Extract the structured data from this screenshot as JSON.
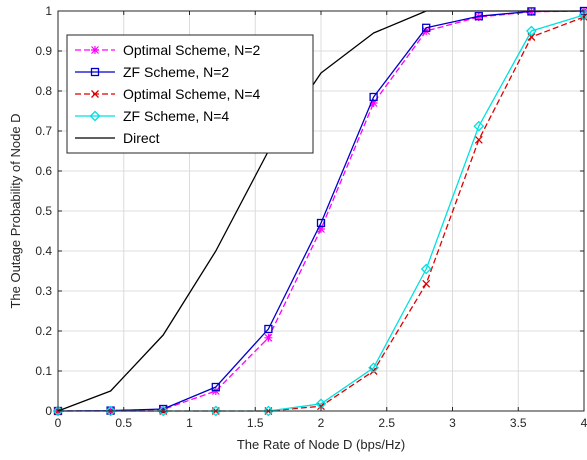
{
  "chart_data": {
    "type": "line",
    "title": "",
    "xlabel": "The Rate of Node D (bps/Hz)",
    "ylabel": "The Outage Probability of Node D",
    "xlim": [
      0,
      4
    ],
    "ylim": [
      0,
      1
    ],
    "xticks": [
      0,
      0.5,
      1,
      1.5,
      2,
      2.5,
      3,
      3.5,
      4
    ],
    "xtick_labels": [
      "0",
      "0.5",
      "1",
      "1.5",
      "2",
      "2.5",
      "3",
      "3.5",
      "4"
    ],
    "yticks": [
      0,
      0.1,
      0.2,
      0.3,
      0.4,
      0.5,
      0.6,
      0.7,
      0.8,
      0.9,
      1
    ],
    "ytick_labels": [
      "0",
      "0.1",
      "0.2",
      "0.3",
      "0.4",
      "0.5",
      "0.6",
      "0.7",
      "0.8",
      "0.9",
      "1"
    ],
    "grid": true,
    "legend_position": "upper-left",
    "series": [
      {
        "name": "Optimal Scheme, N=2",
        "color": "#ff00ff",
        "dash": "dashed",
        "marker": "asterisk",
        "x": [
          0,
          0.4,
          0.8,
          1.2,
          1.6,
          2.0,
          2.4,
          2.8,
          3.2,
          3.6,
          4.0
        ],
        "y": [
          0,
          0.001,
          0.004,
          0.05,
          0.183,
          0.455,
          0.77,
          0.95,
          0.985,
          0.998,
          1.0
        ]
      },
      {
        "name": "ZF Scheme, N=2",
        "color": "#0000cc",
        "dash": "solid",
        "marker": "square",
        "x": [
          0,
          0.4,
          0.8,
          1.2,
          1.6,
          2.0,
          2.4,
          2.8,
          3.2,
          3.6,
          4.0
        ],
        "y": [
          0,
          0.001,
          0.005,
          0.06,
          0.205,
          0.47,
          0.785,
          0.958,
          0.987,
          0.999,
          1.0
        ]
      },
      {
        "name": "Optimal Scheme, N=4",
        "color": "#dd0000",
        "dash": "dashed",
        "marker": "x",
        "x": [
          0,
          0.4,
          0.8,
          1.2,
          1.6,
          2.0,
          2.4,
          2.8,
          3.2,
          3.6,
          4.0
        ],
        "y": [
          0,
          0,
          0,
          0,
          0,
          0.012,
          0.1,
          0.318,
          0.678,
          0.935,
          0.985
        ]
      },
      {
        "name": "ZF Scheme, N=4",
        "color": "#00e0e0",
        "dash": "solid",
        "marker": "diamond",
        "x": [
          0,
          0.4,
          0.8,
          1.2,
          1.6,
          2.0,
          2.4,
          2.8,
          3.2,
          3.6,
          4.0
        ],
        "y": [
          0,
          0,
          0,
          0,
          0,
          0.018,
          0.108,
          0.355,
          0.712,
          0.95,
          0.99
        ]
      },
      {
        "name": "Direct",
        "color": "#000000",
        "dash": "solid",
        "marker": "none",
        "x": [
          0,
          0.4,
          0.8,
          1.2,
          1.6,
          2.0,
          2.4,
          2.8,
          3.2,
          3.6,
          4.0
        ],
        "y": [
          0,
          0.05,
          0.19,
          0.4,
          0.65,
          0.845,
          0.945,
          1.0,
          1.0,
          1.0,
          1.0
        ]
      }
    ]
  }
}
